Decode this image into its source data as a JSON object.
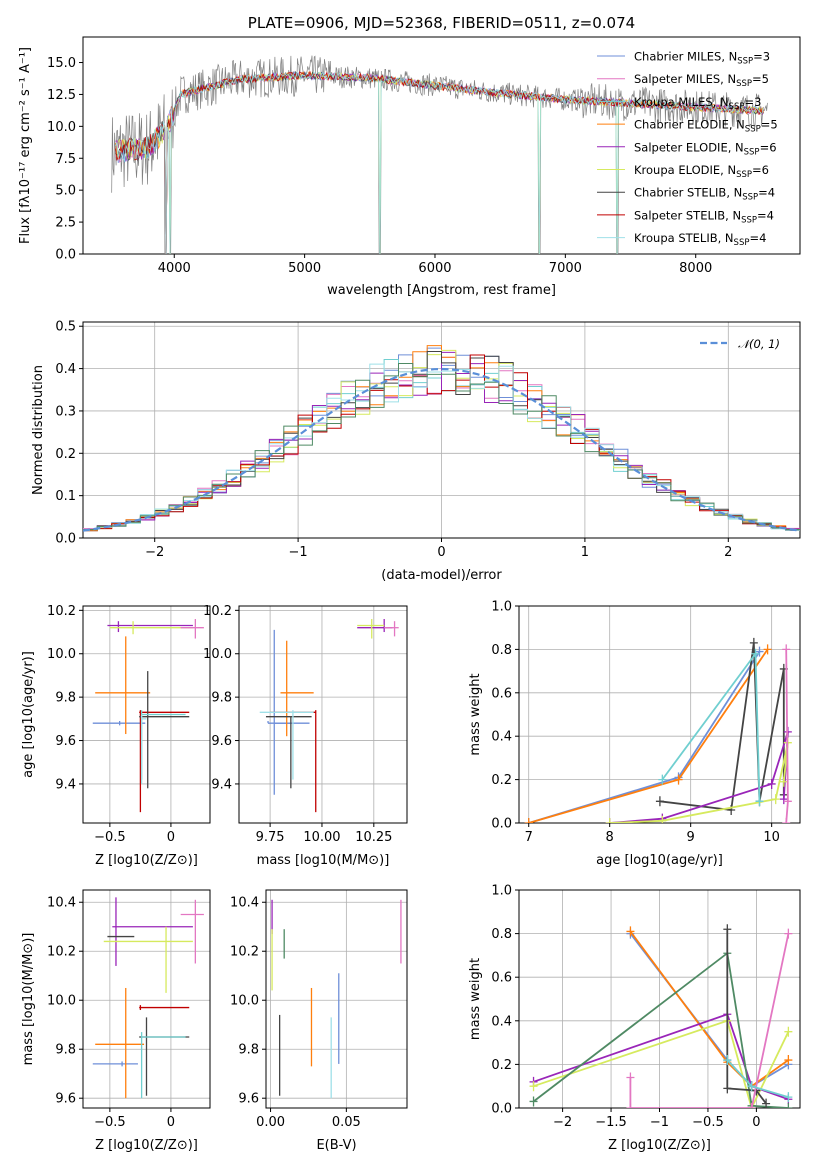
{
  "colors": {
    "Chabrier MILES": "#6f8fd8",
    "Salpeter MILES": "#e377c2",
    "Kroupa MILES": "#70cfd0",
    "Chabrier ELODIE": "#ff7f0e",
    "Salpeter ELODIE": "#9925b8",
    "Kroupa ELODIE": "#d6ea5e",
    "Chabrier STELIB": "#444444",
    "Salpeter STELIB": "#c00000",
    "Kroupa STELIB": "#9fe0e8",
    "spectrum": "#808080",
    "gauss": "#5a8fd8",
    "extra_green": "#4f8a64"
  },
  "chart_data": [
    {
      "id": "spectrum",
      "type": "line",
      "title": "PLATE=0906, MJD=52368, FIBERID=0511, z=0.074",
      "xlabel": "wavelength [Angstrom, rest frame]",
      "ylabel": "Flux [fλ10⁻¹⁷ erg cm⁻² s⁻¹ A⁻¹]",
      "xlim": [
        3300,
        8800
      ],
      "ylim": [
        0,
        17
      ],
      "xticks": [
        4000,
        5000,
        6000,
        7000,
        8000
      ],
      "yticks": [
        0.0,
        2.5,
        5.0,
        7.5,
        10.0,
        12.5,
        15.0
      ],
      "legend": [
        "Chabrier MILES, N_SSP=3",
        "Salpeter MILES, N_SSP=5",
        "Kroupa MILES, N_SSP=3",
        "Chabrier ELODIE, N_SSP=5",
        "Salpeter ELODIE, N_SSP=6",
        "Kroupa ELODIE, N_SSP=6",
        "Chabrier STELIB, N_SSP=4",
        "Salpeter STELIB, N_SSP=4",
        "Kroupa STELIB, N_SSP=4"
      ],
      "legend_placement": "top-right",
      "data_range_x": [
        3520,
        8550
      ],
      "continuum": [
        [
          3520,
          8.0
        ],
        [
          3800,
          8.3
        ],
        [
          3950,
          10.0
        ],
        [
          4050,
          12.5
        ],
        [
          4500,
          13.7
        ],
        [
          5000,
          14.0
        ],
        [
          5500,
          13.8
        ],
        [
          6000,
          13.2
        ],
        [
          6500,
          12.6
        ],
        [
          7000,
          12.1
        ],
        [
          7500,
          11.8
        ],
        [
          8000,
          11.5
        ],
        [
          8550,
          11.2
        ]
      ],
      "dips": [
        [
          3934,
          0
        ],
        [
          3970,
          0
        ],
        [
          5577,
          0
        ],
        [
          6800,
          0
        ],
        [
          7400,
          0
        ]
      ]
    },
    {
      "id": "residual_hist",
      "type": "histogram",
      "xlabel": "(data-model)/error",
      "ylabel": "Normed distribution",
      "xlim": [
        -2.5,
        2.5
      ],
      "ylim": [
        0,
        0.51
      ],
      "xticks": [
        -2,
        -1,
        0,
        1,
        2
      ],
      "yticks": [
        0.0,
        0.1,
        0.2,
        0.3,
        0.4,
        0.5
      ],
      "legend": [
        "𝒩(0, 1)"
      ],
      "legend_placement": "top-right",
      "bin_edges_start": -2.5,
      "bin_width": 0.1,
      "gaussian": {
        "mu": 0,
        "sigma": 1
      }
    },
    {
      "id": "age_vs_Z",
      "type": "errorbar",
      "xlabel": "Z [log10(Z/Z⊙)]",
      "ylabel": "age  [log10(age/yr)]",
      "xlim": [
        -0.72,
        0.32
      ],
      "ylim": [
        9.22,
        10.22
      ],
      "xticks": [
        -0.5,
        0.0
      ],
      "yticks": [
        9.4,
        9.6,
        9.8,
        10.0,
        10.2
      ],
      "points": [
        {
          "s": "Chabrier MILES",
          "x": -0.42,
          "y": 9.68,
          "xe": [
            -0.64,
            -0.21
          ],
          "ye": [
            9.67,
            9.69
          ]
        },
        {
          "s": "Chabrier ELODIE",
          "x": -0.37,
          "y": 9.82,
          "xe": [
            -0.62,
            -0.17
          ],
          "ye": [
            9.63,
            10.08
          ]
        },
        {
          "s": "Salpeter STELIB",
          "x": -0.25,
          "y": 9.73,
          "xe": [
            -0.26,
            0.15
          ],
          "ye": [
            9.27,
            9.74
          ]
        },
        {
          "s": "Chabrier STELIB",
          "x": -0.19,
          "y": 9.71,
          "xe": [
            -0.26,
            0.15
          ],
          "ye": [
            9.38,
            9.92
          ]
        },
        {
          "s": "Kroupa MILES",
          "x": -0.24,
          "y": 9.72,
          "xe": [
            -0.24,
            0.12
          ],
          "ye": [
            9.42,
            9.74
          ]
        },
        {
          "s": "Salpeter ELODIE",
          "x": -0.43,
          "y": 10.13,
          "xe": [
            -0.52,
            0.18
          ],
          "ye": [
            10.1,
            10.15
          ]
        },
        {
          "s": "Kroupa ELODIE",
          "x": -0.31,
          "y": 10.12,
          "xe": [
            -0.5,
            0.18
          ],
          "ye": [
            10.09,
            10.15
          ]
        },
        {
          "s": "Salpeter MILES",
          "x": 0.2,
          "y": 10.12,
          "xe": [
            0.08,
            0.27
          ],
          "ye": [
            10.07,
            10.16
          ]
        },
        {
          "s": "Kroupa STELIB",
          "x": -0.24,
          "y": 9.7,
          "xe": [
            -0.24,
            -0.2
          ],
          "ye": [
            9.4,
            9.72
          ]
        }
      ]
    },
    {
      "id": "age_vs_mass",
      "type": "errorbar",
      "xlabel": "mass [log10(M/M⊙)]",
      "ylabel": "",
      "xlim": [
        9.6,
        10.41
      ],
      "ylim": [
        9.22,
        10.22
      ],
      "xticks": [
        9.75,
        10.0,
        10.25
      ],
      "xtick_labels": [
        "9.75",
        "10.00",
        "10.25"
      ],
      "yticks": [
        9.4,
        9.6,
        9.8,
        10.0,
        10.2
      ],
      "points": [
        {
          "s": "Chabrier MILES",
          "x": 9.74,
          "y": 9.68,
          "xe": [
            9.74,
            9.85
          ],
          "ye": [
            9.68,
            9.69
          ]
        },
        {
          "s": "Chabrier MILES",
          "x": 9.77,
          "y": 9.68,
          "xe": [
            9.77,
            9.94
          ],
          "ye": [
            9.35,
            10.11
          ]
        },
        {
          "s": "Chabrier ELODIE",
          "x": 9.83,
          "y": 9.82,
          "xe": [
            9.8,
            9.96
          ],
          "ye": [
            9.62,
            10.06
          ]
        },
        {
          "s": "Salpeter STELIB",
          "x": 9.97,
          "y": 9.73,
          "xe": [
            9.75,
            9.97
          ],
          "ye": [
            9.27,
            9.74
          ]
        },
        {
          "s": "Chabrier STELIB",
          "x": 9.85,
          "y": 9.71,
          "xe": [
            9.73,
            9.95
          ],
          "ye": [
            9.38,
            9.71
          ]
        },
        {
          "s": "Kroupa STELIB",
          "x": 9.86,
          "y": 9.73,
          "xe": [
            9.7,
            9.96
          ],
          "ye": [
            9.42,
            9.74
          ]
        },
        {
          "s": "Salpeter ELODIE",
          "x": 10.3,
          "y": 10.12,
          "xe": [
            10.17,
            10.34
          ],
          "ye": [
            10.1,
            10.16
          ]
        },
        {
          "s": "Kroupa ELODIE",
          "x": 10.24,
          "y": 10.13,
          "xe": [
            10.17,
            10.3
          ],
          "ye": [
            10.07,
            10.16
          ]
        },
        {
          "s": "Salpeter MILES",
          "x": 10.35,
          "y": 10.12,
          "xe": [
            10.3,
            10.37
          ],
          "ye": [
            10.08,
            10.15
          ]
        }
      ]
    },
    {
      "id": "massweight_vs_age",
      "type": "line",
      "xlabel": "age  [log10(age/yr)]",
      "ylabel": "mass weight",
      "xlim": [
        6.88,
        10.35
      ],
      "ylim": [
        0,
        1
      ],
      "xticks": [
        7,
        8,
        9,
        10
      ],
      "yticks": [
        0.0,
        0.2,
        0.4,
        0.6,
        0.8,
        1.0
      ],
      "series": [
        {
          "s": "Chabrier MILES",
          "pts": [
            [
              7.0,
              0.0
            ],
            [
              8.85,
              0.21
            ],
            [
              9.85,
              0.79
            ]
          ]
        },
        {
          "s": "Chabrier ELODIE",
          "pts": [
            [
              7.0,
              0.0
            ],
            [
              8.85,
              0.2
            ],
            [
              9.95,
              0.8
            ]
          ]
        },
        {
          "s": "Chabrier STELIB",
          "pts": [
            [
              8.62,
              0.1
            ],
            [
              9.5,
              0.06
            ],
            [
              9.78,
              0.83
            ],
            [
              9.85,
              0.1
            ],
            [
              10.15,
              0.71
            ],
            [
              10.15,
              0.13
            ]
          ]
        },
        {
          "s": "Salpeter ELODIE",
          "pts": [
            [
              8.0,
              0.0
            ],
            [
              8.65,
              0.02
            ],
            [
              10.0,
              0.18
            ],
            [
              10.2,
              0.42
            ],
            [
              10.15,
              0.11
            ]
          ]
        },
        {
          "s": "Kroupa ELODIE",
          "pts": [
            [
              8.0,
              0.0
            ],
            [
              8.65,
              0.01
            ],
            [
              10.05,
              0.11
            ],
            [
              10.2,
              0.37
            ],
            [
              10.15,
              0.19
            ]
          ]
        },
        {
          "s": "Salpeter MILES",
          "pts": [
            [
              10.18,
              0.8
            ],
            [
              10.2,
              0.1
            ],
            [
              10.18,
              0.0
            ]
          ]
        },
        {
          "s": "Kroupa MILES",
          "pts": [
            [
              8.65,
              0.2
            ],
            [
              9.8,
              0.78
            ],
            [
              9.85,
              0.1
            ]
          ]
        }
      ]
    },
    {
      "id": "mass_vs_Z",
      "type": "errorbar",
      "xlabel": "Z [log10(Z/Z⊙)]",
      "ylabel": "mass [log10(M/M⊙)]",
      "xlim": [
        -0.72,
        0.32
      ],
      "ylim": [
        9.56,
        10.45
      ],
      "xticks": [
        -0.5,
        0.0
      ],
      "yticks": [
        9.6,
        9.8,
        10.0,
        10.2,
        10.4
      ],
      "points": [
        {
          "s": "Chabrier MILES",
          "x": -0.4,
          "y": 9.74,
          "xe": [
            -0.64,
            -0.27
          ],
          "ye": [
            9.73,
            9.75
          ]
        },
        {
          "s": "Chabrier ELODIE",
          "x": -0.37,
          "y": 9.82,
          "xe": [
            -0.62,
            -0.22
          ],
          "ye": [
            9.6,
            10.05
          ]
        },
        {
          "s": "Salpeter STELIB",
          "x": -0.25,
          "y": 9.97,
          "xe": [
            -0.26,
            0.15
          ],
          "ye": [
            9.96,
            9.98
          ]
        },
        {
          "s": "Chabrier STELIB",
          "x": -0.2,
          "y": 9.85,
          "xe": [
            -0.26,
            0.15
          ],
          "ye": [
            9.61,
            9.93
          ]
        },
        {
          "s": "Kroupa MILES",
          "x": -0.24,
          "y": 9.85,
          "xe": [
            -0.24,
            0.12
          ],
          "ye": [
            9.6,
            9.87
          ]
        },
        {
          "s": "Salpeter ELODIE",
          "x": -0.45,
          "y": 10.3,
          "xe": [
            -0.48,
            0.18
          ],
          "ye": [
            10.14,
            10.42
          ]
        },
        {
          "s": "Kroupa ELODIE",
          "x": -0.04,
          "y": 10.24,
          "xe": [
            -0.55,
            0.18
          ],
          "ye": [
            10.03,
            10.3
          ]
        },
        {
          "s": "Salpeter MILES",
          "x": 0.2,
          "y": 10.35,
          "xe": [
            0.08,
            0.27
          ],
          "ye": [
            10.15,
            10.41
          ]
        },
        {
          "s": "Chabrier STELIB",
          "x": -0.4,
          "y": 10.26,
          "xe": [
            -0.52,
            -0.3
          ],
          "ye": [
            10.26,
            10.26
          ]
        }
      ]
    },
    {
      "id": "mass_vs_ebv",
      "type": "errorbar",
      "xlabel": "E(B-V)",
      "ylabel": "",
      "xlim": [
        -0.003,
        0.09
      ],
      "ylim": [
        9.56,
        10.45
      ],
      "xticks": [
        0.0,
        0.05
      ],
      "xtick_labels": [
        "0.00",
        "0.05"
      ],
      "yticks": [
        9.6,
        9.8,
        10.0,
        10.2,
        10.4
      ],
      "points": [
        {
          "s": "Chabrier STELIB",
          "x": 0.006,
          "y": 9.8,
          "xe": [
            0.006,
            0.006
          ],
          "ye": [
            9.61,
            9.94
          ]
        },
        {
          "s": "Chabrier ELODIE",
          "x": 0.027,
          "y": 9.88,
          "xe": [
            0.027,
            0.027
          ],
          "ye": [
            9.73,
            10.05
          ]
        },
        {
          "s": "Kroupa STELIB",
          "x": 0.04,
          "y": 9.85,
          "xe": [
            0.04,
            0.04
          ],
          "ye": [
            9.6,
            9.93
          ]
        },
        {
          "s": "Chabrier MILES",
          "x": 0.045,
          "y": 9.95,
          "xe": [
            0.045,
            0.045
          ],
          "ye": [
            9.74,
            10.11
          ]
        },
        {
          "s": "Salpeter ELODIE",
          "x": 0.001,
          "y": 10.34,
          "xe": [
            0.001,
            0.001
          ],
          "ye": [
            10.27,
            10.41
          ]
        },
        {
          "s": "Kroupa ELODIE",
          "x": 0.001,
          "y": 10.2,
          "xe": [
            0.001,
            0.001
          ],
          "ye": [
            10.04,
            10.29
          ]
        },
        {
          "s": "extra_green",
          "x": 0.009,
          "y": 10.23,
          "xe": [
            0.009,
            0.009
          ],
          "ye": [
            10.17,
            10.29
          ]
        },
        {
          "s": "Salpeter MILES",
          "x": 0.086,
          "y": 10.28,
          "xe": [
            0.086,
            0.086
          ],
          "ye": [
            10.15,
            10.41
          ]
        }
      ]
    },
    {
      "id": "massweight_vs_Z",
      "type": "line",
      "xlabel": "Z [log10(Z/Z⊙)]",
      "ylabel": "mass weight",
      "xlim": [
        -2.45,
        0.45
      ],
      "ylim": [
        0,
        1
      ],
      "xticks": [
        -2.0,
        -1.5,
        -1.0,
        -0.5,
        0.0
      ],
      "yticks": [
        0.0,
        0.2,
        0.4,
        0.6,
        0.8,
        1.0
      ],
      "series": [
        {
          "s": "Chabrier MILES",
          "pts": [
            [
              -1.3,
              0.8
            ],
            [
              -0.3,
              0.22
            ],
            [
              -0.05,
              0.1
            ],
            [
              0.33,
              0.2
            ]
          ]
        },
        {
          "s": "Chabrier ELODIE",
          "pts": [
            [
              -1.3,
              0.81
            ],
            [
              -0.3,
              0.21
            ],
            [
              -0.05,
              0.1
            ],
            [
              0.33,
              0.22
            ]
          ]
        },
        {
          "s": "Salpeter ELODIE",
          "pts": [
            [
              -2.3,
              0.12
            ],
            [
              -0.3,
              0.43
            ],
            [
              -0.05,
              0.1
            ],
            [
              0.33,
              0.04
            ]
          ]
        },
        {
          "s": "Kroupa ELODIE",
          "pts": [
            [
              -2.3,
              0.1
            ],
            [
              -0.3,
              0.4
            ],
            [
              -0.05,
              0.0
            ],
            [
              0.33,
              0.35
            ]
          ]
        },
        {
          "s": "extra_green",
          "pts": [
            [
              -2.3,
              0.03
            ],
            [
              -0.3,
              0.71
            ],
            [
              -0.05,
              0.01
            ],
            [
              0.33,
              0.0
            ]
          ]
        },
        {
          "s": "Chabrier STELIB",
          "pts": [
            [
              -0.3,
              0.82
            ],
            [
              -0.3,
              0.09
            ],
            [
              0.0,
              0.08
            ],
            [
              0.1,
              0.02
            ]
          ]
        },
        {
          "s": "Salpeter MILES",
          "pts": [
            [
              -1.3,
              0.14
            ],
            [
              -1.3,
              0.0
            ],
            [
              -0.05,
              0.0
            ],
            [
              0.33,
              0.8
            ]
          ]
        },
        {
          "s": "Kroupa MILES",
          "pts": [
            [
              -0.3,
              0.22
            ],
            [
              -0.05,
              0.1
            ],
            [
              0.33,
              0.05
            ]
          ]
        }
      ]
    }
  ]
}
